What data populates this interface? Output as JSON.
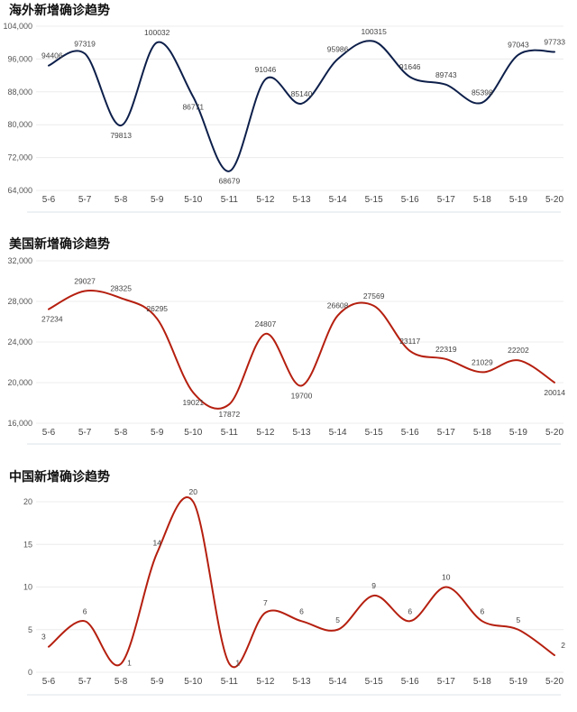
{
  "chart_data": [
    {
      "type": "line",
      "title": "海外新增确诊趋势",
      "categories": [
        "5-6",
        "5-7",
        "5-8",
        "5-9",
        "5-10",
        "5-11",
        "5-12",
        "5-13",
        "5-14",
        "5-15",
        "5-16",
        "5-17",
        "5-18",
        "5-19",
        "5-20"
      ],
      "values": [
        94406,
        97319,
        79813,
        100032,
        86771,
        68679,
        91046,
        85140,
        95986,
        100315,
        91646,
        89743,
        85398,
        97043,
        97733
      ],
      "ylim": [
        64000,
        104000
      ],
      "yticks": [
        64000,
        72000,
        80000,
        88000,
        96000,
        104000
      ],
      "ytick_labels": [
        "64,000",
        "72,000",
        "80,000",
        "88,000",
        "96,000",
        "104,000"
      ],
      "labels": [
        "94406",
        "97319",
        "79813",
        "100032",
        "86771",
        "68679",
        "91046",
        "85140",
        "95986",
        "100315",
        "91646",
        "89743",
        "85398",
        "97043",
        "97733"
      ],
      "label_sides": [
        "above",
        "above",
        "below",
        "above",
        "below",
        "below",
        "above",
        "above",
        "above",
        "above",
        "above",
        "above",
        "above",
        "above",
        "above"
      ],
      "line_color": "#0d1f4a",
      "grid": true,
      "xlabel": "",
      "ylabel": ""
    },
    {
      "type": "line",
      "title": "美国新增确诊趋势",
      "categories": [
        "5-6",
        "5-7",
        "5-8",
        "5-9",
        "5-10",
        "5-11",
        "5-12",
        "5-13",
        "5-14",
        "5-15",
        "5-16",
        "5-17",
        "5-18",
        "5-19",
        "5-20"
      ],
      "values": [
        27234,
        29027,
        28325,
        26295,
        19021,
        17872,
        24807,
        19700,
        26608,
        27569,
        23117,
        22319,
        21029,
        22202,
        20014
      ],
      "ylim": [
        16000,
        32000
      ],
      "yticks": [
        16000,
        20000,
        24000,
        28000,
        32000
      ],
      "ytick_labels": [
        "16,000",
        "20,000",
        "24,000",
        "28,000",
        "32,000"
      ],
      "labels": [
        "27234",
        "29027",
        "28325",
        "26295",
        "19021",
        "17872",
        "24807",
        "19700",
        "26608",
        "27569",
        "23117",
        "22319",
        "21029",
        "22202",
        "20014"
      ],
      "label_sides": [
        "below",
        "above",
        "above",
        "above",
        "below",
        "below",
        "above",
        "below",
        "above",
        "above",
        "above",
        "above",
        "above",
        "above",
        "below"
      ],
      "line_color": "#b51f0f",
      "grid": true,
      "xlabel": "",
      "ylabel": ""
    },
    {
      "type": "line",
      "title": "中国新增确诊趋势",
      "categories": [
        "5-6",
        "5-7",
        "5-8",
        "5-9",
        "5-10",
        "5-11",
        "5-12",
        "5-13",
        "5-14",
        "5-15",
        "5-16",
        "5-17",
        "5-18",
        "5-19",
        "5-20"
      ],
      "values": [
        3,
        6,
        1,
        14,
        20,
        1,
        7,
        6,
        5,
        9,
        6,
        10,
        6,
        5,
        2
      ],
      "ylim": [
        0,
        20
      ],
      "yticks": [
        0,
        5,
        10,
        15,
        20
      ],
      "ytick_labels": [
        "0",
        "5",
        "10",
        "15",
        "20"
      ],
      "labels": [
        "3",
        "6",
        "1",
        "14",
        "20",
        "1",
        "7",
        "6",
        "5",
        "9",
        "6",
        "10",
        "6",
        "5",
        "2"
      ],
      "label_sides": [
        "above",
        "above",
        "right",
        "above",
        "above",
        "right",
        "above",
        "above",
        "above",
        "above",
        "above",
        "above",
        "above",
        "above",
        "above"
      ],
      "line_color": "#b51f0f",
      "grid": true,
      "xlabel": "",
      "ylabel": ""
    }
  ]
}
